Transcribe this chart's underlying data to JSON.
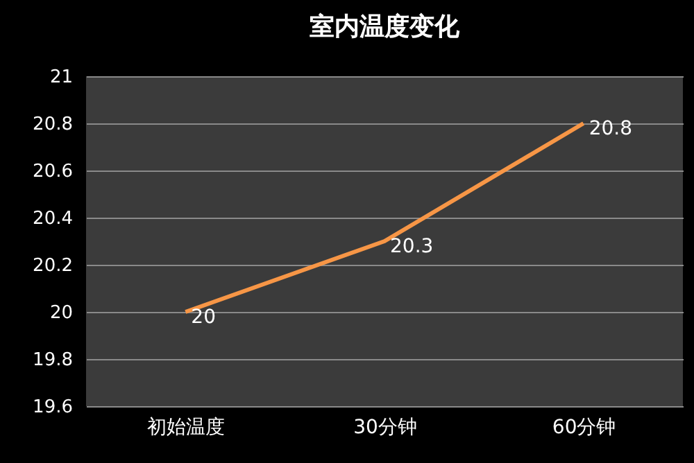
{
  "chart_data": {
    "type": "line",
    "title": "室内温度变化",
    "categories": [
      "初始温度",
      "30分钟",
      "60分钟"
    ],
    "series": [
      {
        "color": "#f79646",
        "values": [
          20,
          20.3,
          20.8
        ]
      }
    ],
    "ylim": [
      19.6,
      21
    ],
    "yticks": [
      19.6,
      19.8,
      20,
      20.2,
      20.4,
      20.6,
      20.8,
      21
    ],
    "grid": "y",
    "data_labels": true,
    "marker": "none",
    "line_style": "solid"
  }
}
